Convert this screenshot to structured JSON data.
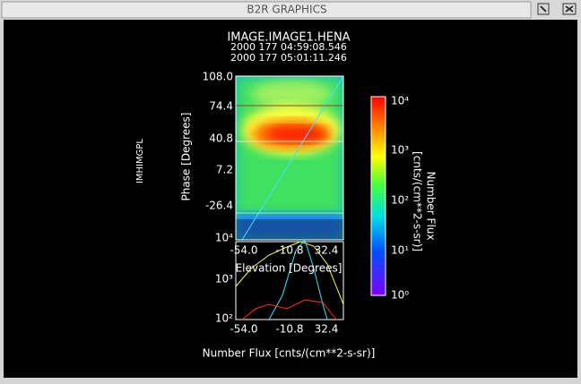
{
  "window": {
    "title": "B2R GRAPHICS"
  },
  "plot": {
    "title": "IMAGE.IMAGE1.HENA",
    "time_start": "2000 177 04:59:08.546",
    "time_end": "2000 177 05:01:11.246",
    "side_label": "IMHIMGPL",
    "y_axis_label": "Phase  [Degrees]",
    "y_ticks": [
      "108.0",
      "74.4",
      "40.8",
      "7.2",
      "-26.4"
    ],
    "x_ticks": [
      "-54.0",
      "-10.8",
      "32.4"
    ],
    "x_axis_label": "Elevation  [Degrees]"
  },
  "flux_plot": {
    "y_ticks": [
      "10⁴",
      "10³",
      "10²"
    ],
    "x_ticks": [
      "-54.0",
      "-10.8",
      "32.4"
    ],
    "x_axis_label": "Number Flux  [cnts/(cm**2-s-sr)]"
  },
  "colorbar": {
    "ticks": [
      "10⁴",
      "10³",
      "10²",
      "10¹",
      "10⁰"
    ],
    "title": "Number Flux",
    "units": "[cnts/(cm**2-s-sr)]"
  }
}
